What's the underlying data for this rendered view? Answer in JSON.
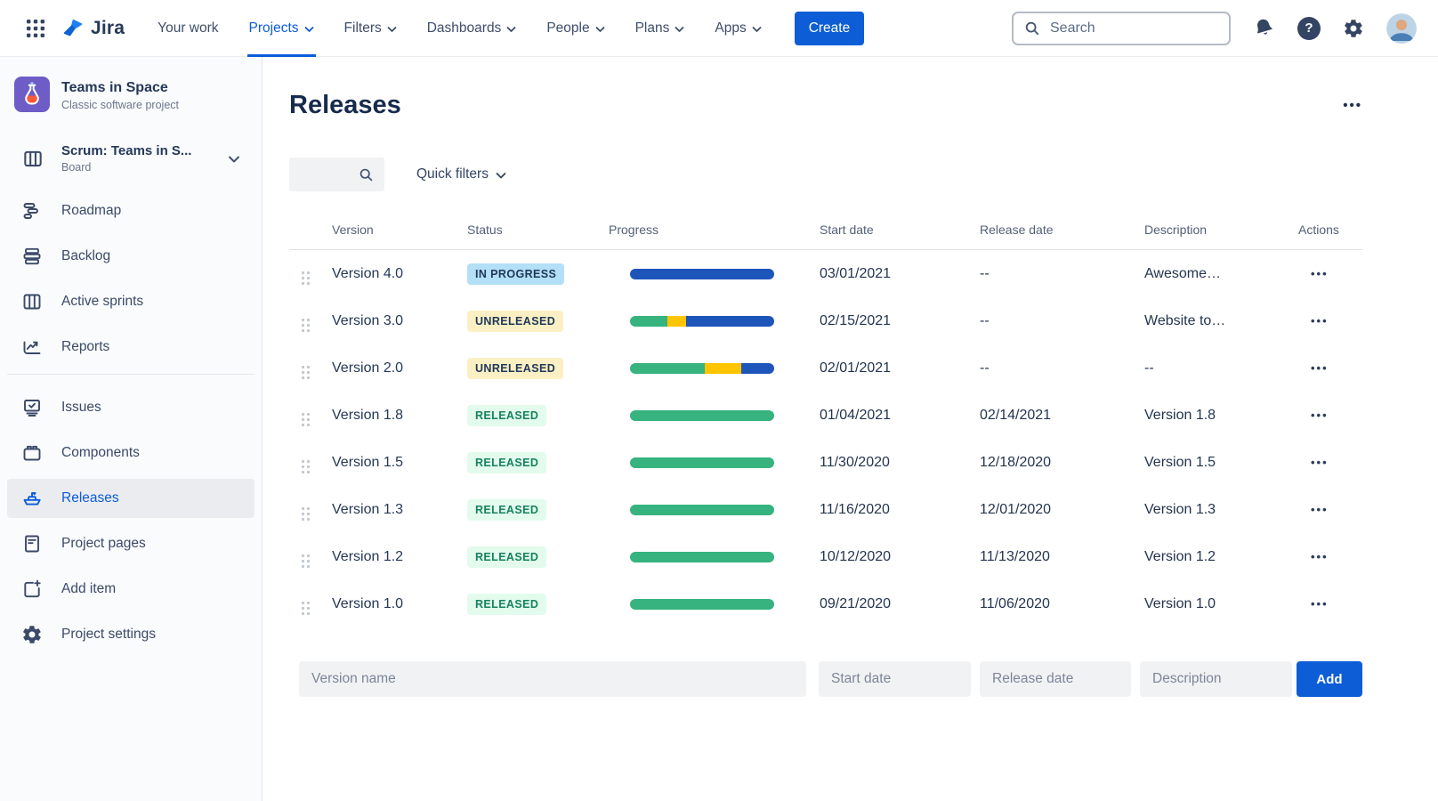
{
  "colors": {
    "brand_blue": "#0C5DD6",
    "progress_blue": "#1D55BB",
    "progress_green": "#36B37E",
    "progress_yellow": "#FFC400",
    "badge_inprogress_bg": "#B3E0F6",
    "badge_unreleased_bg": "#FBF0C3",
    "badge_released_bg": "#E2FBEC"
  },
  "nav": {
    "logo_text": "Jira",
    "items": [
      {
        "label": "Your work",
        "has_dropdown": false,
        "active": false
      },
      {
        "label": "Projects",
        "has_dropdown": true,
        "active": true
      },
      {
        "label": "Filters",
        "has_dropdown": true,
        "active": false
      },
      {
        "label": "Dashboards",
        "has_dropdown": true,
        "active": false
      },
      {
        "label": "People",
        "has_dropdown": true,
        "active": false
      },
      {
        "label": "Plans",
        "has_dropdown": true,
        "active": false
      },
      {
        "label": "Apps",
        "has_dropdown": true,
        "active": false
      }
    ],
    "create_label": "Create",
    "search_placeholder": "Search"
  },
  "sidebar": {
    "project_name": "Teams in Space",
    "project_type": "Classic software project",
    "board_name": "Scrum: Teams in S...",
    "board_type": "Board",
    "groups": [
      {
        "items": [
          {
            "label": "Roadmap",
            "icon": "roadmap-icon"
          },
          {
            "label": "Backlog",
            "icon": "backlog-icon"
          },
          {
            "label": "Active sprints",
            "icon": "board-columns-icon"
          },
          {
            "label": "Reports",
            "icon": "chart-icon"
          }
        ]
      },
      {
        "items": [
          {
            "label": "Issues",
            "icon": "issues-icon"
          },
          {
            "label": "Components",
            "icon": "components-icon"
          },
          {
            "label": "Releases",
            "icon": "ship-icon",
            "active": true
          },
          {
            "label": "Project pages",
            "icon": "pages-icon"
          },
          {
            "label": "Add item",
            "icon": "add-item-icon"
          },
          {
            "label": "Project settings",
            "icon": "gear-icon"
          }
        ]
      }
    ]
  },
  "page": {
    "title": "Releases",
    "more_actions_label": "•••",
    "quick_filters_label": "Quick filters"
  },
  "table": {
    "headers": [
      "Version",
      "Status",
      "Progress",
      "Start date",
      "Release date",
      "Description",
      "Actions"
    ],
    "rows": [
      {
        "version": "Version 4.0",
        "status": "IN PROGRESS",
        "status_type": "in-progress",
        "progress": [
          {
            "color": "progress_blue",
            "pct": 100
          }
        ],
        "start_date": "03/01/2021",
        "release_date": "--",
        "description": "Awesome…",
        "actions_label": "•••"
      },
      {
        "version": "Version 3.0",
        "status": "UNRELEASED",
        "status_type": "unreleased",
        "progress": [
          {
            "color": "progress_green",
            "pct": 26
          },
          {
            "color": "progress_yellow",
            "pct": 13
          },
          {
            "color": "progress_blue",
            "pct": 61
          }
        ],
        "start_date": "02/15/2021",
        "release_date": "--",
        "description": "Website to…",
        "actions_label": "•••"
      },
      {
        "version": "Version 2.0",
        "status": "UNRELEASED",
        "status_type": "unreleased",
        "progress": [
          {
            "color": "progress_green",
            "pct": 52
          },
          {
            "color": "progress_yellow",
            "pct": 25
          },
          {
            "color": "progress_blue",
            "pct": 23
          }
        ],
        "start_date": "02/01/2021",
        "release_date": "--",
        "description": "--",
        "actions_label": "•••"
      },
      {
        "version": "Version 1.8",
        "status": "RELEASED",
        "status_type": "released",
        "progress": [
          {
            "color": "progress_green",
            "pct": 100
          }
        ],
        "start_date": "01/04/2021",
        "release_date": "02/14/2021",
        "description": "Version 1.8",
        "actions_label": "•••"
      },
      {
        "version": "Version 1.5",
        "status": "RELEASED",
        "status_type": "released",
        "progress": [
          {
            "color": "progress_green",
            "pct": 100
          }
        ],
        "start_date": "11/30/2020",
        "release_date": "12/18/2020",
        "description": "Version 1.5",
        "actions_label": "•••"
      },
      {
        "version": "Version 1.3",
        "status": "RELEASED",
        "status_type": "released",
        "progress": [
          {
            "color": "progress_green",
            "pct": 100
          }
        ],
        "start_date": "11/16/2020",
        "release_date": "12/01/2020",
        "description": "Version 1.3",
        "actions_label": "•••"
      },
      {
        "version": "Version 1.2",
        "status": "RELEASED",
        "status_type": "released",
        "progress": [
          {
            "color": "progress_green",
            "pct": 100
          }
        ],
        "start_date": "10/12/2020",
        "release_date": "11/13/2020",
        "description": "Version 1.2",
        "actions_label": "•••"
      },
      {
        "version": "Version 1.0",
        "status": "RELEASED",
        "status_type": "released",
        "progress": [
          {
            "color": "progress_green",
            "pct": 100
          }
        ],
        "start_date": "09/21/2020",
        "release_date": "11/06/2020",
        "description": "Version 1.0",
        "actions_label": "•••"
      }
    ]
  },
  "form": {
    "version_placeholder": "Version name",
    "start_placeholder": "Start date",
    "release_placeholder": "Release date",
    "description_placeholder": "Description",
    "add_label": "Add"
  }
}
